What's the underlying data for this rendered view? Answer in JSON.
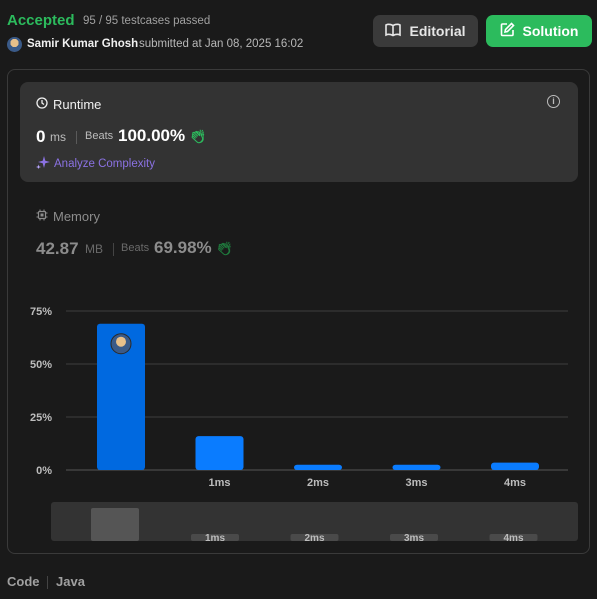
{
  "submission": {
    "status": "Accepted",
    "testcases": "95 / 95 testcases passed",
    "author": "Samir Kumar Ghosh",
    "submitted_text": "submitted at Jan 08, 2025 16:02"
  },
  "buttons": {
    "editorial": "Editorial",
    "solution": "Solution"
  },
  "runtime": {
    "title": "Runtime",
    "value": "0",
    "unit": "ms",
    "beats_label": "Beats",
    "beats_value": "100.00%",
    "analyze": "Analyze Complexity"
  },
  "memory": {
    "title": "Memory",
    "value": "42.87",
    "unit": "MB",
    "beats_label": "Beats",
    "beats_value": "69.98%"
  },
  "colors": {
    "accent_green": "#2cbb5d",
    "bar_blue": "#0a7cff",
    "purple": "#8b72e3"
  },
  "chart_data": {
    "type": "bar",
    "yticks": [
      "75%",
      "50%",
      "25%",
      "0%"
    ],
    "ytick_values": [
      75,
      50,
      25,
      0
    ],
    "categories": [
      "",
      "1ms",
      "2ms",
      "3ms",
      "4ms"
    ],
    "values": [
      69,
      16,
      2.5,
      2.5,
      3.5
    ],
    "ylim": [
      0,
      75
    ],
    "highlighted_index": 0,
    "grid": true,
    "overview_labels": [
      "1ms",
      "2ms",
      "3ms",
      "4ms"
    ]
  },
  "footer": {
    "code_label": "Code",
    "language": "Java"
  }
}
